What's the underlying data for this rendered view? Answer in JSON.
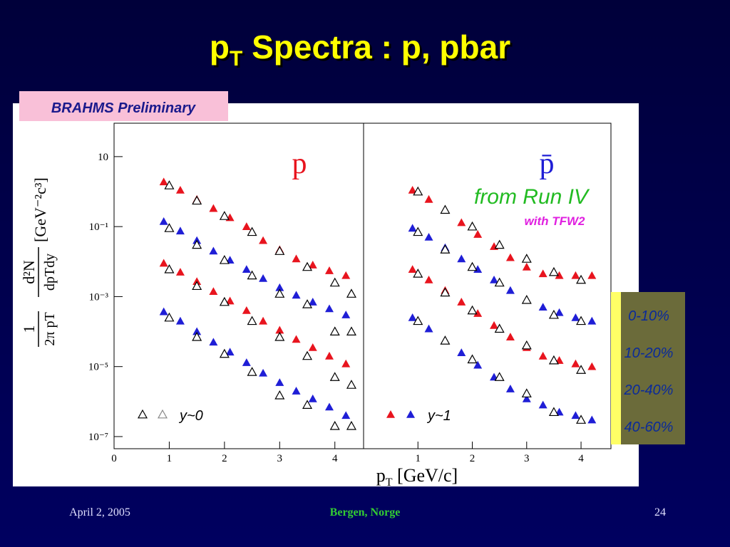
{
  "slide": {
    "title": {
      "main": "p",
      "sub": "T",
      "rest": " Spectra : p, pbar"
    },
    "badge": "BRAHMS Preliminary",
    "annotation_run": "from Run IV",
    "annotation_tfw": "with TFW2",
    "footer": {
      "date": "April 2, 2005",
      "place": "Bergen, Norge",
      "page": "24"
    }
  },
  "chart_data": [
    {
      "type": "scatter",
      "panel_label": "p",
      "panel_label_color": "#e8141e",
      "legend_text": "y~0",
      "log_y": true,
      "grid": false,
      "xlabel": {
        "main": "p",
        "sub": "T",
        "rest": " [GeV/c]"
      },
      "ylabel": {
        "num1": "1",
        "den1": "2π pT",
        "num2": "d²N",
        "den2": "dpTdy",
        "unit": "[GeV⁻²c³]"
      },
      "xlim": [
        0,
        4.52
      ],
      "ylim": [
        4.5e-08,
        90
      ],
      "xticks": [
        0,
        1,
        2,
        3,
        4
      ],
      "yticks": [
        10,
        {
          "value": 0.1,
          "label": "10⁻¹"
        },
        {
          "value": 0.001,
          "label": "10⁻³"
        },
        {
          "value": 1e-05,
          "label": "10⁻⁵"
        },
        {
          "value": 1e-07,
          "label": "10⁻⁷"
        }
      ],
      "series": [
        {
          "name": "0-10%",
          "color": "#e8141e",
          "marker": "filled",
          "x": [
            0.9,
            1.2,
            1.5,
            1.8,
            2.1,
            2.4,
            2.7,
            3.0,
            3.3,
            3.6,
            3.9,
            4.2
          ],
          "values": [
            1.9,
            1.1,
            0.6,
            0.33,
            0.18,
            0.1,
            0.04,
            0.022,
            0.012,
            0.008,
            0.0055,
            0.004
          ]
        },
        {
          "name": "10-20%",
          "color": "#1f1ed6",
          "marker": "filled",
          "x": [
            0.9,
            1.2,
            1.5,
            1.8,
            2.1,
            2.4,
            2.7,
            3.0,
            3.3,
            3.6,
            3.9,
            4.2
          ],
          "values": [
            0.14,
            0.075,
            0.04,
            0.02,
            0.011,
            0.006,
            0.0033,
            0.0018,
            0.0011,
            0.0007,
            0.00045,
            0.0003
          ]
        },
        {
          "name": "20-40%",
          "color": "#e8141e",
          "marker": "filled",
          "x": [
            0.9,
            1.2,
            1.5,
            1.8,
            2.1,
            2.4,
            2.7,
            3.0,
            3.3,
            3.6,
            3.9,
            4.2
          ],
          "values": [
            0.009,
            0.005,
            0.0027,
            0.0014,
            0.00075,
            0.0004,
            0.0002,
            0.00011,
            6e-05,
            3.5e-05,
            2e-05,
            1.2e-05
          ]
        },
        {
          "name": "40-60%",
          "color": "#1f1ed6",
          "marker": "filled",
          "x": [
            0.9,
            1.2,
            1.5,
            1.8,
            2.1,
            2.4,
            2.7,
            3.0,
            3.3,
            3.6,
            3.9,
            4.2
          ],
          "values": [
            0.00037,
            0.0002,
            0.0001,
            5e-05,
            2.6e-05,
            1.3e-05,
            6.5e-06,
            3.5e-06,
            2e-06,
            1.2e-06,
            7e-07,
            4e-07
          ]
        },
        {
          "color": "#000000",
          "marker": "open",
          "x": [
            1.0,
            1.5,
            2.0,
            2.5,
            3.0,
            3.5,
            4.0,
            4.3
          ],
          "values": [
            1.5,
            0.55,
            0.2,
            0.07,
            0.02,
            0.007,
            0.0025,
            0.0012
          ]
        },
        {
          "color": "#000000",
          "marker": "open",
          "x": [
            1.0,
            1.5,
            2.0,
            2.5,
            3.0,
            3.5,
            4.0,
            4.3
          ],
          "values": [
            0.09,
            0.03,
            0.011,
            0.004,
            0.0012,
            0.0006,
            0.0001,
            0.0001
          ]
        },
        {
          "color": "#000000",
          "marker": "open",
          "x": [
            1.0,
            1.5,
            2.0,
            2.5,
            3.0,
            3.5,
            4.0,
            4.3
          ],
          "values": [
            0.006,
            0.002,
            0.0007,
            0.0002,
            7e-05,
            2e-05,
            5e-06,
            3e-06
          ]
        },
        {
          "color": "#000000",
          "marker": "open",
          "x": [
            1.0,
            1.5,
            2.0,
            2.5,
            3.0,
            3.5,
            4.0,
            4.3
          ],
          "values": [
            0.00025,
            7e-05,
            2.3e-05,
            7e-06,
            1.5e-06,
            8e-07,
            2e-07,
            2e-07
          ]
        }
      ]
    },
    {
      "type": "scatter",
      "panel_label": "p̄",
      "panel_label_color": "#1f1ed6",
      "legend_text": "y~1",
      "log_y": true,
      "grid": false,
      "xlim": [
        0,
        4.55
      ],
      "ylim": [
        4.5e-08,
        90
      ],
      "xticks": [
        1,
        2,
        3,
        4
      ],
      "series": [
        {
          "color": "#e8141e",
          "marker": "filled",
          "x": [
            0.9,
            1.2,
            1.5,
            1.8,
            2.1,
            2.4,
            2.7,
            3.0,
            3.3,
            3.6,
            3.9,
            4.2
          ],
          "values": [
            1.1,
            0.6,
            0.3,
            0.13,
            0.06,
            0.027,
            0.013,
            0.007,
            0.0045,
            0.004,
            0.004,
            0.004
          ]
        },
        {
          "color": "#1f1ed6",
          "marker": "filled",
          "x": [
            0.9,
            1.2,
            1.5,
            1.8,
            2.1,
            2.4,
            2.7,
            3.0,
            3.3,
            3.6,
            3.9,
            4.2
          ],
          "values": [
            0.09,
            0.05,
            0.025,
            0.012,
            0.006,
            0.003,
            0.0015,
            0.0008,
            0.0005,
            0.00035,
            0.00025,
            0.0002
          ]
        },
        {
          "color": "#e8141e",
          "marker": "filled",
          "x": [
            0.9,
            1.2,
            1.5,
            1.8,
            2.1,
            2.4,
            2.7,
            3.0,
            3.3,
            3.6,
            3.9,
            4.2
          ],
          "values": [
            0.006,
            0.003,
            0.0015,
            0.0007,
            0.00033,
            0.00015,
            7e-05,
            3.5e-05,
            2e-05,
            1.5e-05,
            1.2e-05,
            1e-05
          ]
        },
        {
          "color": "#1f1ed6",
          "marker": "filled",
          "x": [
            0.9,
            1.2,
            1.5,
            1.8,
            2.1,
            2.4,
            2.7,
            3.0,
            3.3,
            3.6,
            3.9,
            4.2
          ],
          "values": [
            0.00025,
            0.00012,
            5.5e-05,
            2.5e-05,
            1.1e-05,
            5e-06,
            2.3e-06,
            1.2e-06,
            8e-07,
            5e-07,
            4e-07,
            3e-07
          ]
        },
        {
          "color": "#000000",
          "marker": "open",
          "x": [
            1.0,
            1.5,
            2.0,
            2.5,
            3.0,
            3.5,
            4.0
          ],
          "values": [
            1.0,
            0.3,
            0.1,
            0.03,
            0.012,
            0.005,
            0.003
          ]
        },
        {
          "color": "#000000",
          "marker": "open",
          "x": [
            1.0,
            1.5,
            2.0,
            2.5,
            3.0,
            3.5,
            4.0
          ],
          "values": [
            0.07,
            0.022,
            0.007,
            0.0025,
            0.0008,
            0.0003,
            0.0002
          ]
        },
        {
          "color": "#000000",
          "marker": "open",
          "x": [
            1.0,
            1.5,
            2.0,
            2.5,
            3.0,
            3.5,
            4.0
          ],
          "values": [
            0.0045,
            0.0013,
            0.0004,
            0.00012,
            4e-05,
            1.5e-05,
            8e-06
          ]
        },
        {
          "color": "#000000",
          "marker": "open",
          "x": [
            1.0,
            1.5,
            2.0,
            2.5,
            3.0,
            3.5,
            4.0
          ],
          "values": [
            0.0002,
            5.5e-05,
            1.6e-05,
            5e-06,
            1.7e-06,
            5e-07,
            3e-07
          ]
        }
      ]
    }
  ]
}
